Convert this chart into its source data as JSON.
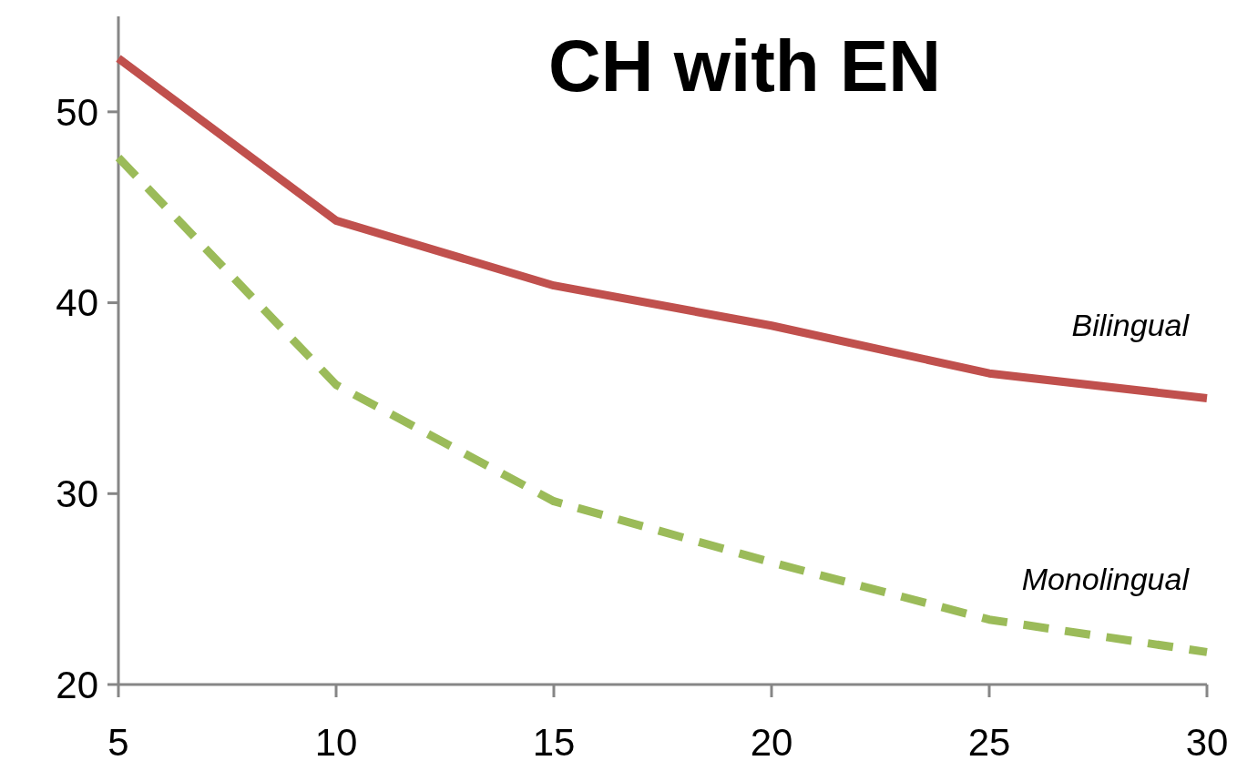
{
  "chart_data": {
    "type": "line",
    "title": "CH with EN",
    "x": [
      5,
      10,
      15,
      20,
      25,
      30
    ],
    "xlim": [
      5,
      30
    ],
    "xticks": [
      5,
      10,
      15,
      20,
      25,
      30
    ],
    "ylim": [
      20,
      55
    ],
    "yticks": [
      20,
      30,
      40,
      50
    ],
    "grid": false,
    "legend": false,
    "marker": "none",
    "series": [
      {
        "name": "Bilingual",
        "color": "#c0504d",
        "line_style": "solid",
        "values": [
          52.8,
          44.3,
          40.9,
          38.8,
          36.3,
          35.0
        ]
      },
      {
        "name": "Monolingual",
        "color": "#9bbb59",
        "line_style": "dashed",
        "values": [
          47.6,
          35.7,
          29.6,
          26.4,
          23.4,
          21.7
        ]
      }
    ]
  }
}
